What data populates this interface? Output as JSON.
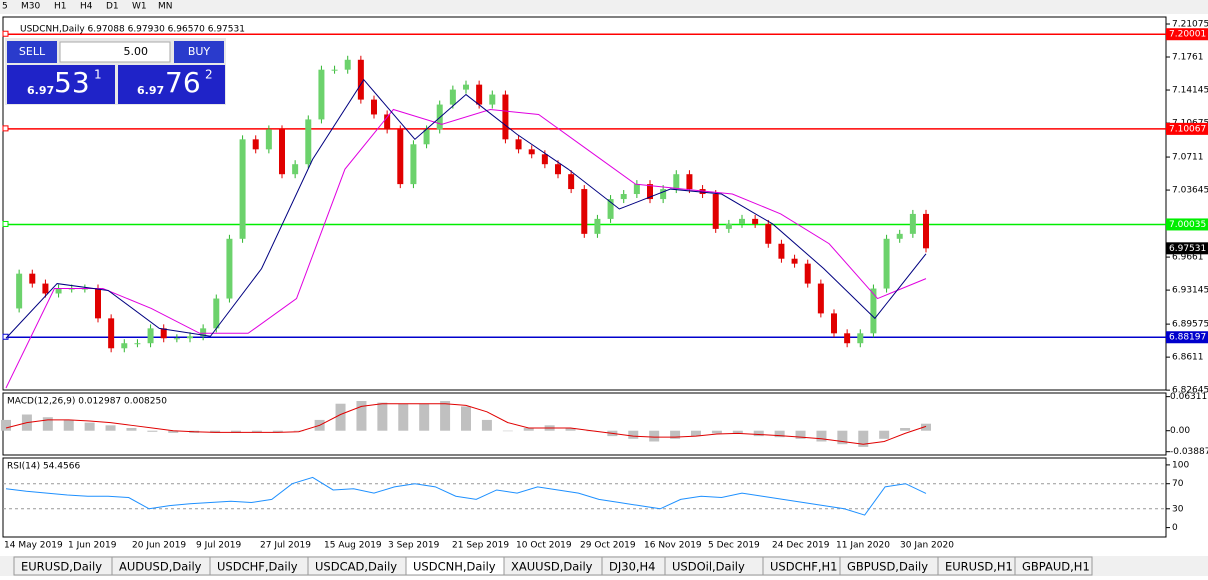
{
  "toolbar": [
    "5",
    "M30",
    "H1",
    "H4",
    "D1",
    "W1",
    "MN"
  ],
  "chart": {
    "header": "USDCNH,Daily  6.97088 6.97930 6.96570 6.97531",
    "trade_panel": {
      "sell": "SELL",
      "buy": "BUY",
      "volume": "5.00",
      "sell_big": "6.97",
      "sell_digits": "53",
      "sell_sup": "1",
      "buy_big": "6.97",
      "buy_digits": "76",
      "buy_sup": "2"
    },
    "ylim": [
      6.8266,
      7.2181
    ],
    "yticks": [
      7.21075,
      7.1761,
      7.14145,
      7.10675,
      7.0711,
      7.03645,
      6.9661,
      6.93145,
      6.89575,
      6.8611,
      6.82645
    ],
    "levels": [
      {
        "value": 7.20001,
        "color": "#ff0000"
      },
      {
        "value": 7.10067,
        "color": "#ff0000"
      },
      {
        "value": 7.00035,
        "color": "#00ee00"
      },
      {
        "value": 6.88197,
        "color": "#0000cc"
      }
    ],
    "current_price": 6.97531,
    "closes": [
      6.9122,
      6.9487,
      6.9383,
      6.9279,
      6.9331,
      6.9331,
      6.9331,
      6.9018,
      6.8704,
      6.8757,
      6.8757,
      6.8913,
      6.8809,
      6.8809,
      6.883,
      6.8913,
      6.9226,
      6.9853,
      7.0897,
      7.0792,
      7.1001,
      7.0531,
      7.0636,
      7.1106,
      7.1628,
      7.1628,
      7.1732,
      7.1314,
      7.1158,
      7.1001,
      7.0427,
      7.0845,
      7.1001,
      7.1262,
      7.1419,
      7.1471,
      7.1262,
      7.1367,
      7.0897,
      7.0792,
      7.074,
      7.0636,
      7.0531,
      7.0375,
      6.9905,
      7.0062,
      7.027,
      7.0323,
      7.0427,
      7.027,
      7.0375,
      7.0531,
      7.0375,
      7.0323,
      6.9957,
      7.0009,
      7.0062,
      7.0009,
      6.9801,
      6.9644,
      6.9592,
      6.9383,
      6.907,
      6.8861,
      6.8757,
      6.8861,
      6.9331,
      6.9853,
      6.9905,
      7.0114,
      6.9753
    ],
    "ma_slow": [
      6.8287,
      6.9331,
      6.9331,
      6.9122,
      6.8861,
      6.8861,
      6.9226,
      7.0584,
      7.121,
      7.1054,
      7.121,
      7.1158,
      7.0792,
      7.0427,
      7.0375,
      7.0323,
      7.0114,
      6.9801,
      6.9226,
      6.9435
    ],
    "ma_fast": [
      6.8809,
      6.9383,
      6.931,
      6.8913,
      6.883,
      6.954,
      7.0688,
      7.1523,
      7.0897,
      7.1367,
      7.0949,
      7.0584,
      7.0166,
      7.0375,
      7.0323,
      7.0009,
      6.954,
      6.9018,
      6.9696
    ],
    "dates": [
      "14 May 2019",
      "1 Jun 2019",
      "20 Jun 2019",
      "9 Jul 2019",
      "27 Jul 2019",
      "15 Aug 2019",
      "3 Sep 2019",
      "21 Sep 2019",
      "10 Oct 2019",
      "29 Oct 2019",
      "16 Nov 2019",
      "5 Dec 2019",
      "24 Dec 2019",
      "11 Jan 2020",
      "30 Jan 2020"
    ]
  },
  "macd": {
    "label": "MACD(12,26,9) 0.012987 0.008250",
    "ylim": [
      -0.045,
      0.068
    ],
    "yticks": [
      0.063113,
      {
        "value": 0,
        "label": "0.00"
      },
      -0.038877
    ],
    "histogram": [
      0.02,
      0.03,
      0.025,
      0.02,
      0.015,
      0.01,
      0.005,
      -0.002,
      -0.004,
      -0.004,
      -0.004,
      -0.004,
      -0.003,
      -0.003,
      0.0,
      0.02,
      0.05,
      0.055,
      0.052,
      0.05,
      0.05,
      0.055,
      0.045,
      0.02,
      0.0,
      0.005,
      0.01,
      0.005,
      0.0,
      -0.01,
      -0.015,
      -0.02,
      -0.015,
      -0.01,
      -0.005,
      -0.005,
      -0.01,
      -0.012,
      -0.015,
      -0.02,
      -0.025,
      -0.03,
      -0.015,
      0.005,
      0.013
    ],
    "signal": [
      0.005,
      0.015,
      0.02,
      0.02,
      0.018,
      0.015,
      0.01,
      0.005,
      0.0,
      -0.002,
      -0.003,
      -0.003,
      -0.003,
      -0.003,
      -0.002,
      0.01,
      0.03,
      0.045,
      0.05,
      0.05,
      0.05,
      0.05,
      0.047,
      0.035,
      0.015,
      0.005,
      0.005,
      0.005,
      0.0,
      -0.005,
      -0.01,
      -0.012,
      -0.012,
      -0.01,
      -0.006,
      -0.005,
      -0.007,
      -0.009,
      -0.012,
      -0.015,
      -0.02,
      -0.025,
      -0.02,
      -0.005,
      0.008
    ]
  },
  "rsi": {
    "label": "RSI(14) 54.4566",
    "ylim": [
      -15,
      111
    ],
    "yticks": [
      100,
      70,
      30,
      0
    ],
    "levels": [
      70,
      30
    ],
    "values": [
      62,
      58,
      55,
      52,
      50,
      50,
      48,
      30,
      35,
      38,
      40,
      42,
      40,
      45,
      70,
      80,
      60,
      62,
      55,
      65,
      70,
      65,
      50,
      45,
      60,
      55,
      65,
      60,
      55,
      45,
      40,
      35,
      30,
      45,
      50,
      48,
      55,
      50,
      45,
      40,
      35,
      30,
      20,
      65,
      70,
      54.4566
    ]
  },
  "tabs": [
    "EURUSD,Daily",
    "AUDUSD,Daily",
    "USDCHF,Daily",
    "USDCAD,Daily",
    "USDCNH,Daily",
    "XAUUSD,Daily",
    "DJ30,H4",
    "USDOil,Daily",
    "USDCHF,H1",
    "GBPUSD,Daily",
    "EURUSD,H1",
    "GBPAUD,H1"
  ],
  "active_tab": 4
}
